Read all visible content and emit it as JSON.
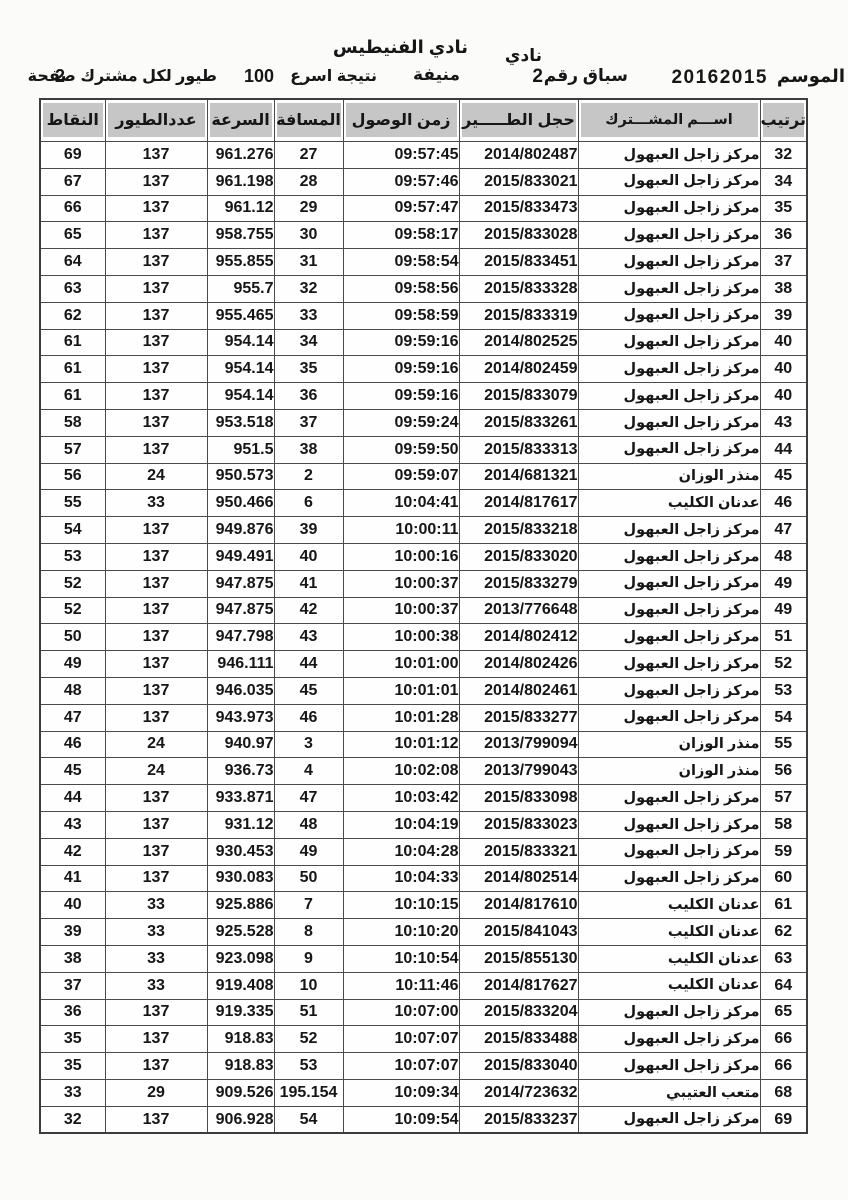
{
  "page": {
    "club_label": "نادي",
    "club_name": "نادي الفنيطيس",
    "season_label": "الموسم",
    "season_value": "20162015",
    "race_label": "سباق رقم",
    "race_number": "2",
    "release_site": "منيفة",
    "result_note": "نتيجة اسرع",
    "result_count": "100",
    "result_note2": "طيور لكل مشترك صفحة",
    "page_number": "2"
  },
  "colors": {
    "header_cell_bg": "#c6c6c6",
    "grid_border": "#4a4a4a",
    "text": "#161616",
    "paper": "#fbfbfa"
  },
  "table": {
    "headers": {
      "rank": "ترتيب",
      "name": "اســـم المشـــترك",
      "ring": "حجل الطـــــير",
      "time": "زمن الوصول",
      "distance": "المسافة",
      "speed": "السرعة",
      "birds": "عددالطيور",
      "points": "النقاط"
    },
    "rows": [
      {
        "rank": "32",
        "name": "مركز زاجل العبهول",
        "ring": "2014/802487",
        "time": "09:57:45",
        "distance": "27",
        "speed": "961.276",
        "birds": "137",
        "points": "69"
      },
      {
        "rank": "34",
        "name": "مركز زاجل العبهول",
        "ring": "2015/833021",
        "time": "09:57:46",
        "distance": "28",
        "speed": "961.198",
        "birds": "137",
        "points": "67"
      },
      {
        "rank": "35",
        "name": "مركز زاجل العبهول",
        "ring": "2015/833473",
        "time": "09:57:47",
        "distance": "29",
        "speed": "961.12",
        "birds": "137",
        "points": "66"
      },
      {
        "rank": "36",
        "name": "مركز زاجل العبهول",
        "ring": "2015/833028",
        "time": "09:58:17",
        "distance": "30",
        "speed": "958.755",
        "birds": "137",
        "points": "65"
      },
      {
        "rank": "37",
        "name": "مركز زاجل العبهول",
        "ring": "2015/833451",
        "time": "09:58:54",
        "distance": "31",
        "speed": "955.855",
        "birds": "137",
        "points": "64"
      },
      {
        "rank": "38",
        "name": "مركز زاجل العبهول",
        "ring": "2015/833328",
        "time": "09:58:56",
        "distance": "32",
        "speed": "955.7",
        "birds": "137",
        "points": "63"
      },
      {
        "rank": "39",
        "name": "مركز زاجل العبهول",
        "ring": "2015/833319",
        "time": "09:58:59",
        "distance": "33",
        "speed": "955.465",
        "birds": "137",
        "points": "62"
      },
      {
        "rank": "40",
        "name": "مركز زاجل العبهول",
        "ring": "2014/802525",
        "time": "09:59:16",
        "distance": "34",
        "speed": "954.14",
        "birds": "137",
        "points": "61"
      },
      {
        "rank": "40",
        "name": "مركز زاجل العبهول",
        "ring": "2014/802459",
        "time": "09:59:16",
        "distance": "35",
        "speed": "954.14",
        "birds": "137",
        "points": "61"
      },
      {
        "rank": "40",
        "name": "مركز زاجل العبهول",
        "ring": "2015/833079",
        "time": "09:59:16",
        "distance": "36",
        "speed": "954.14",
        "birds": "137",
        "points": "61"
      },
      {
        "rank": "43",
        "name": "مركز زاجل العبهول",
        "ring": "2015/833261",
        "time": "09:59:24",
        "distance": "37",
        "speed": "953.518",
        "birds": "137",
        "points": "58"
      },
      {
        "rank": "44",
        "name": "مركز زاجل العبهول",
        "ring": "2015/833313",
        "time": "09:59:50",
        "distance": "38",
        "speed": "951.5",
        "birds": "137",
        "points": "57"
      },
      {
        "rank": "45",
        "name": "منذر الوزان",
        "ring": "2014/681321",
        "time": "09:59:07",
        "distance": "2",
        "speed": "950.573",
        "birds": "24",
        "points": "56"
      },
      {
        "rank": "46",
        "name": "عدنان الكليب",
        "ring": "2014/817617",
        "time": "10:04:41",
        "distance": "6",
        "speed": "950.466",
        "birds": "33",
        "points": "55"
      },
      {
        "rank": "47",
        "name": "مركز زاجل العبهول",
        "ring": "2015/833218",
        "time": "10:00:11",
        "distance": "39",
        "speed": "949.876",
        "birds": "137",
        "points": "54"
      },
      {
        "rank": "48",
        "name": "مركز زاجل العبهول",
        "ring": "2015/833020",
        "time": "10:00:16",
        "distance": "40",
        "speed": "949.491",
        "birds": "137",
        "points": "53"
      },
      {
        "rank": "49",
        "name": "مركز زاجل العبهول",
        "ring": "2015/833279",
        "time": "10:00:37",
        "distance": "41",
        "speed": "947.875",
        "birds": "137",
        "points": "52"
      },
      {
        "rank": "49",
        "name": "مركز زاجل العبهول",
        "ring": "2013/776648",
        "time": "10:00:37",
        "distance": "42",
        "speed": "947.875",
        "birds": "137",
        "points": "52"
      },
      {
        "rank": "51",
        "name": "مركز زاجل العبهول",
        "ring": "2014/802412",
        "time": "10:00:38",
        "distance": "43",
        "speed": "947.798",
        "birds": "137",
        "points": "50"
      },
      {
        "rank": "52",
        "name": "مركز زاجل العبهول",
        "ring": "2014/802426",
        "time": "10:01:00",
        "distance": "44",
        "speed": "946.111",
        "birds": "137",
        "points": "49"
      },
      {
        "rank": "53",
        "name": "مركز زاجل العبهول",
        "ring": "2014/802461",
        "time": "10:01:01",
        "distance": "45",
        "speed": "946.035",
        "birds": "137",
        "points": "48"
      },
      {
        "rank": "54",
        "name": "مركز زاجل العبهول",
        "ring": "2015/833277",
        "time": "10:01:28",
        "distance": "46",
        "speed": "943.973",
        "birds": "137",
        "points": "47"
      },
      {
        "rank": "55",
        "name": "منذر الوزان",
        "ring": "2013/799094",
        "time": "10:01:12",
        "distance": "3",
        "speed": "940.97",
        "birds": "24",
        "points": "46"
      },
      {
        "rank": "56",
        "name": "منذر الوزان",
        "ring": "2013/799043",
        "time": "10:02:08",
        "distance": "4",
        "speed": "936.73",
        "birds": "24",
        "points": "45"
      },
      {
        "rank": "57",
        "name": "مركز زاجل العبهول",
        "ring": "2015/833098",
        "time": "10:03:42",
        "distance": "47",
        "speed": "933.871",
        "birds": "137",
        "points": "44"
      },
      {
        "rank": "58",
        "name": "مركز زاجل العبهول",
        "ring": "2015/833023",
        "time": "10:04:19",
        "distance": "48",
        "speed": "931.12",
        "birds": "137",
        "points": "43"
      },
      {
        "rank": "59",
        "name": "مركز زاجل العبهول",
        "ring": "2015/833321",
        "time": "10:04:28",
        "distance": "49",
        "speed": "930.453",
        "birds": "137",
        "points": "42"
      },
      {
        "rank": "60",
        "name": "مركز زاجل العبهول",
        "ring": "2014/802514",
        "time": "10:04:33",
        "distance": "50",
        "speed": "930.083",
        "birds": "137",
        "points": "41"
      },
      {
        "rank": "61",
        "name": "عدنان الكليب",
        "ring": "2014/817610",
        "time": "10:10:15",
        "distance": "7",
        "speed": "925.886",
        "birds": "33",
        "points": "40"
      },
      {
        "rank": "62",
        "name": "عدنان الكليب",
        "ring": "2015/841043",
        "time": "10:10:20",
        "distance": "8",
        "speed": "925.528",
        "birds": "33",
        "points": "39"
      },
      {
        "rank": "63",
        "name": "عدنان الكليب",
        "ring": "2015/855130",
        "time": "10:10:54",
        "distance": "9",
        "speed": "923.098",
        "birds": "33",
        "points": "38"
      },
      {
        "rank": "64",
        "name": "عدنان الكليب",
        "ring": "2014/817627",
        "time": "10:11:46",
        "distance": "10",
        "speed": "919.408",
        "birds": "33",
        "points": "37"
      },
      {
        "rank": "65",
        "name": "مركز زاجل العبهول",
        "ring": "2015/833204",
        "time": "10:07:00",
        "distance": "51",
        "speed": "919.335",
        "birds": "137",
        "points": "36"
      },
      {
        "rank": "66",
        "name": "مركز زاجل العبهول",
        "ring": "2015/833488",
        "time": "10:07:07",
        "distance": "52",
        "speed": "918.83",
        "birds": "137",
        "points": "35"
      },
      {
        "rank": "66",
        "name": "مركز زاجل العبهول",
        "ring": "2015/833040",
        "time": "10:07:07",
        "distance": "53",
        "speed": "918.83",
        "birds": "137",
        "points": "35"
      },
      {
        "rank": "68",
        "name": "متعب العتيبي",
        "ring": "2014/723632",
        "time": "10:09:34",
        "distance": "195.154",
        "speed": "909.526",
        "birds": "29",
        "points": "33"
      },
      {
        "rank": "69",
        "name": "مركز زاجل العبهول",
        "ring": "2015/833237",
        "time": "10:09:54",
        "distance": "54",
        "speed": "906.928",
        "birds": "137",
        "points": "32"
      }
    ]
  }
}
